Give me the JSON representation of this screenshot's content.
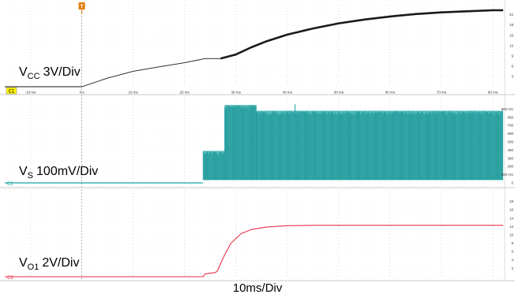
{
  "chart_data": {
    "type": "line",
    "x_unit": "ms",
    "xlim": [
      -15,
      82
    ],
    "x_tick_labels": [
      "-10 ms",
      "0 s",
      "10 ms",
      "20 ms",
      "30 ms",
      "40 ms",
      "50 ms",
      "60 ms",
      "70 ms",
      "80 ms"
    ],
    "xlabel": "10ms/Div",
    "colors": {
      "ch1": "#1a1a1a",
      "ch2": "#1aa3a3",
      "ch3": "#e8324a",
      "trigger": "#e07b00"
    },
    "channels": [
      {
        "marker": "C1",
        "name_main": "V",
        "name_sub": "CC",
        "scale": "3V/Div",
        "right_labels": [
          "21",
          "18",
          "15",
          "12",
          "9",
          "6",
          "3"
        ],
        "ylim": [
          0,
          23
        ],
        "x": [
          -15,
          0,
          5,
          10,
          15,
          20,
          24,
          27,
          30,
          33,
          36,
          40,
          45,
          50,
          55,
          60,
          65,
          70,
          75,
          80,
          82
        ],
        "y": [
          0,
          0,
          2.5,
          4.5,
          5.8,
          7.0,
          8.2,
          8.2,
          9.4,
          11.5,
          13.3,
          15.2,
          17.0,
          18.5,
          19.6,
          20.5,
          21.2,
          21.7,
          22.0,
          22.3,
          22.3
        ]
      },
      {
        "marker": "C2",
        "name_main": "V",
        "name_sub": "S",
        "scale": "100mV/Div",
        "right_labels": [
          "900 mV",
          "800",
          "700",
          "600",
          "500",
          "400",
          "300",
          "200",
          "100 mV",
          "0"
        ],
        "ylim": [
          0,
          1000
        ],
        "segments": [
          {
            "x0": -15,
            "x1": 23.6,
            "low": 0,
            "high": 0
          },
          {
            "x0": 23.6,
            "x1": 27.8,
            "low": 40,
            "high": 390
          },
          {
            "x0": 27.8,
            "x1": 34.0,
            "low": 40,
            "high": 950
          },
          {
            "x0": 34.0,
            "x1": 82,
            "low": 40,
            "high": 880
          }
        ],
        "spike": {
          "x": 41.5,
          "y": 960
        }
      },
      {
        "marker": "C3",
        "name_main": "V",
        "name_sub": "O1",
        "scale": "2V/Div",
        "right_labels": [
          "18",
          "16",
          "14",
          "12",
          "10",
          "8",
          "6",
          "4",
          "2"
        ],
        "ylim": [
          0,
          20
        ],
        "x": [
          -15,
          23.6,
          24.0,
          26.0,
          26.4,
          27.5,
          29,
          31,
          33,
          36,
          40,
          45,
          50,
          60,
          70,
          80,
          82
        ],
        "y": [
          0,
          0,
          0.7,
          1.0,
          1.4,
          4.5,
          8.0,
          10.3,
          11.3,
          11.9,
          12.2,
          12.3,
          12.3,
          12.3,
          12.3,
          12.3,
          12.3
        ]
      }
    ]
  }
}
